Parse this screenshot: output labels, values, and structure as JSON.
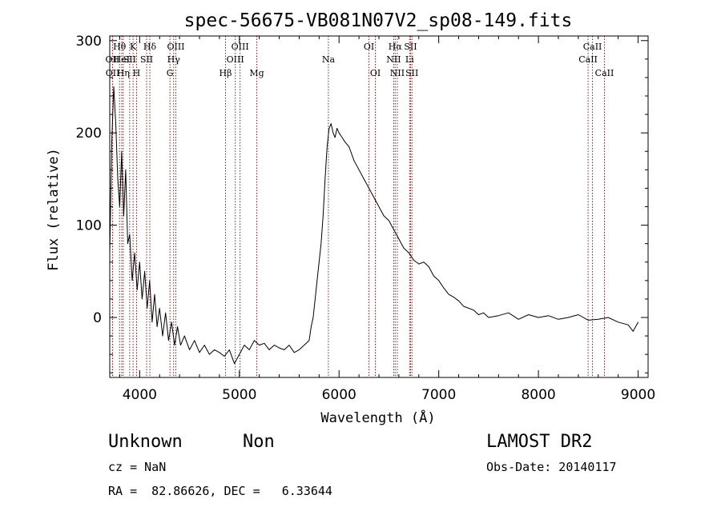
{
  "chart_data": {
    "type": "line",
    "title": "spec-56675-VB081N07V2_sp08-149.fits",
    "xlabel": "Wavelength (Å)",
    "ylabel": "Flux (relative)",
    "xlim": [
      3700,
      9100
    ],
    "ylim": [
      -65,
      305
    ],
    "xticks": [
      4000,
      5000,
      6000,
      7000,
      8000,
      9000
    ],
    "yticks": [
      0,
      100,
      200,
      300
    ],
    "grid": false,
    "series": [
      {
        "x": [
          3700,
          3720,
          3740,
          3760,
          3780,
          3800,
          3820,
          3840,
          3860,
          3880,
          3900,
          3925,
          3950,
          3975,
          4000,
          4025,
          4050,
          4075,
          4100,
          4125,
          4150,
          4175,
          4200,
          4230,
          4260,
          4290,
          4320,
          4350,
          4380,
          4410,
          4450,
          4500,
          4550,
          4600,
          4650,
          4700,
          4750,
          4800,
          4850,
          4900,
          4950,
          5000,
          5050,
          5100,
          5150,
          5200,
          5250,
          5300,
          5350,
          5400,
          5450,
          5500,
          5550,
          5600,
          5650,
          5700,
          5720,
          5740,
          5760,
          5780,
          5800,
          5820,
          5840,
          5860,
          5880,
          5900,
          5920,
          5940,
          5960,
          5980,
          6000,
          6030,
          6060,
          6100,
          6150,
          6200,
          6250,
          6300,
          6350,
          6400,
          6450,
          6500,
          6550,
          6600,
          6650,
          6700,
          6750,
          6800,
          6850,
          6900,
          6950,
          7000,
          7050,
          7100,
          7150,
          7200,
          7250,
          7300,
          7350,
          7400,
          7450,
          7500,
          7600,
          7700,
          7800,
          7900,
          8000,
          8100,
          8200,
          8300,
          8400,
          8500,
          8600,
          8700,
          8800,
          8900,
          8950,
          9000
        ],
        "values": [
          70,
          190,
          250,
          210,
          150,
          120,
          180,
          110,
          160,
          80,
          90,
          40,
          70,
          30,
          60,
          20,
          50,
          10,
          40,
          -5,
          25,
          -10,
          10,
          -20,
          5,
          -25,
          -5,
          -30,
          -10,
          -30,
          -20,
          -35,
          -25,
          -38,
          -30,
          -40,
          -35,
          -38,
          -42,
          -35,
          -50,
          -40,
          -30,
          -35,
          -25,
          -30,
          -28,
          -35,
          -30,
          -33,
          -35,
          -30,
          -38,
          -35,
          -30,
          -25,
          -10,
          0,
          20,
          40,
          60,
          80,
          110,
          150,
          185,
          205,
          210,
          200,
          195,
          205,
          200,
          195,
          190,
          185,
          170,
          160,
          150,
          140,
          130,
          120,
          110,
          105,
          95,
          85,
          75,
          70,
          62,
          58,
          60,
          55,
          45,
          40,
          32,
          25,
          22,
          18,
          12,
          10,
          8,
          3,
          5,
          0,
          2,
          5,
          -2,
          3,
          0,
          2,
          -2,
          0,
          3,
          -3,
          -2,
          0,
          -5,
          -8,
          -15,
          -5
        ]
      }
    ],
    "spectral_lines": [
      {
        "label": "OII",
        "x": 3727,
        "row": 2
      },
      {
        "label": "OII",
        "x": 3729,
        "row": 3
      },
      {
        "label": "Hθ",
        "x": 3798,
        "row": 1
      },
      {
        "label": "HeI",
        "x": 3820,
        "row": 2
      },
      {
        "label": "Hη",
        "x": 3835,
        "row": 3
      },
      {
        "label": "K",
        "x": 3934,
        "row": 1
      },
      {
        "label": "SII",
        "x": 3900,
        "row": 2
      },
      {
        "label": "H",
        "x": 3969,
        "row": 3
      },
      {
        "label": "Hδ",
        "x": 4102,
        "row": 1
      },
      {
        "label": "SII",
        "x": 4070,
        "row": 2
      },
      {
        "label": "OIII",
        "x": 4363,
        "row": 1
      },
      {
        "label": "Hγ",
        "x": 4341,
        "row": 2
      },
      {
        "label": "G",
        "x": 4304,
        "row": 3
      },
      {
        "label": "Hβ",
        "x": 4861,
        "row": 3
      },
      {
        "label": "OIII",
        "x": 5007,
        "row": 1
      },
      {
        "label": "OIII",
        "x": 4959,
        "row": 2
      },
      {
        "label": "Mg",
        "x": 5175,
        "row": 3
      },
      {
        "label": "Na",
        "x": 5893,
        "row": 2
      },
      {
        "label": "OI",
        "x": 6300,
        "row": 1
      },
      {
        "label": "OI",
        "x": 6364,
        "row": 3
      },
      {
        "label": "Hα",
        "x": 6563,
        "row": 1
      },
      {
        "label": "NII",
        "x": 6548,
        "row": 2
      },
      {
        "label": "NII",
        "x": 6584,
        "row": 3
      },
      {
        "label": "SII",
        "x": 6717,
        "row": 1
      },
      {
        "label": "Li",
        "x": 6708,
        "row": 2
      },
      {
        "label": "SII",
        "x": 6731,
        "row": 3
      },
      {
        "label": "CaII",
        "x": 8542,
        "row": 1
      },
      {
        "label": "CaII",
        "x": 8498,
        "row": 2
      },
      {
        "label": "CaII",
        "x": 8662,
        "row": 3
      }
    ]
  },
  "info": {
    "class_label": "Unknown",
    "subclass_label": "Non",
    "survey": "LAMOST DR2",
    "cz": "cz = NaN",
    "obs_date": "Obs-Date: 20140117",
    "coords": "RA =  82.86626, DEC =   6.33644"
  },
  "colors": {
    "line_marker": "#8b1a1a",
    "spectrum": "#000000"
  }
}
